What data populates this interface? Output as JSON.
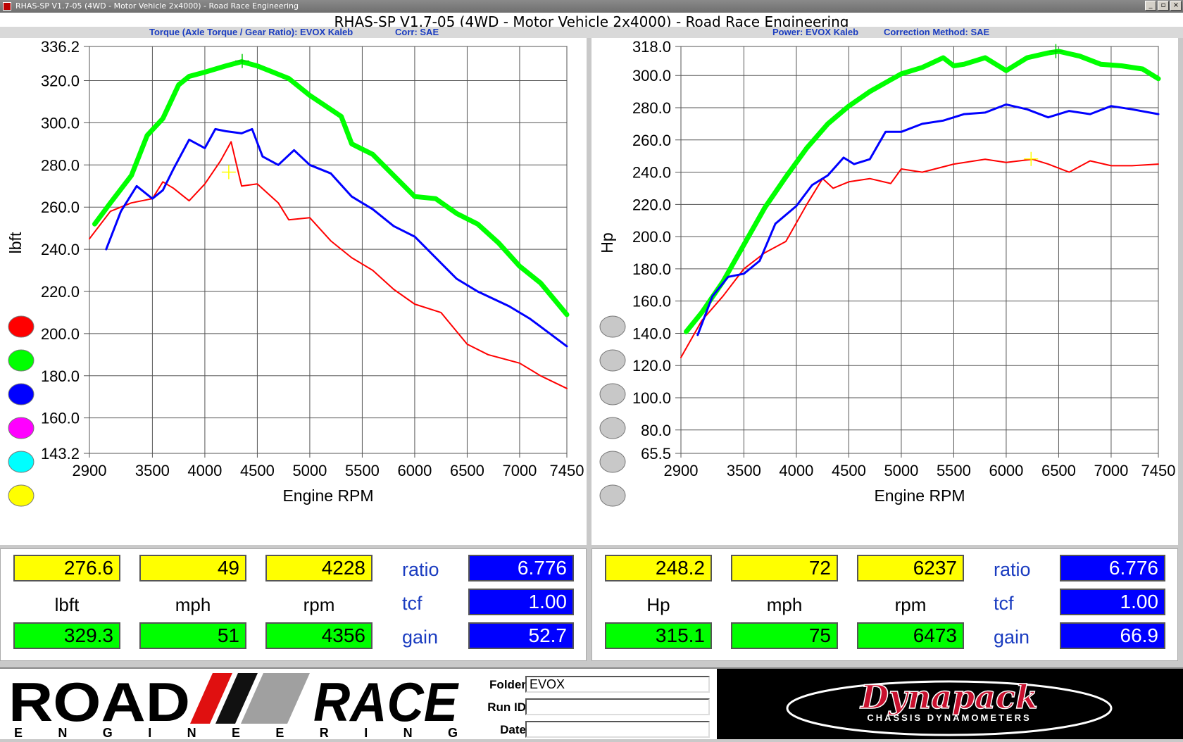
{
  "window": {
    "title": "RHAS-SP V1.7-05   (4WD - Motor Vehicle 2x4000) - Road Race Engineering",
    "controls": [
      "_",
      "×"
    ]
  },
  "header": {
    "main_title": "RHAS-SP V1.7-05   (4WD - Motor Vehicle 2x4000) - Road Race Engineering",
    "left_info": "Torque (Axle Torque / Gear Ratio): EVOX Kaleb",
    "left_corr": "Corr: SAE",
    "right_info": "Power: EVOX Kaleb",
    "right_corr": "Correction Method: SAE"
  },
  "legend_colors": [
    "#ff0000",
    "#00ff00",
    "#0000ff",
    "#ff00ff",
    "#00ffff",
    "#ffff00"
  ],
  "legend_colors_right": [
    "#c8c8c8",
    "#c8c8c8",
    "#c8c8c8",
    "#c8c8c8",
    "#c8c8c8",
    "#c8c8c8"
  ],
  "chart_data": [
    {
      "type": "line",
      "ylabel": "lbft",
      "xlabel": "Engine RPM",
      "xlim": [
        2900,
        7450
      ],
      "ylim": [
        143.2,
        336.2
      ],
      "x_ticks": [
        "2900",
        "3500",
        "4000",
        "4500",
        "5000",
        "5500",
        "6000",
        "6500",
        "7000",
        "7450"
      ],
      "y_ticks": [
        "336.2",
        "320.0",
        "300.0",
        "280.0",
        "260.0",
        "240.0",
        "220.0",
        "200.0",
        "180.0",
        "160.0",
        "143.2"
      ],
      "grid": true,
      "series": [
        {
          "color": "#ff0000",
          "width": 2,
          "x": [
            2900,
            3100,
            3300,
            3500,
            3600,
            3700,
            3850,
            4000,
            4150,
            4250,
            4350,
            4500,
            4700,
            4800,
            5000,
            5200,
            5400,
            5600,
            5800,
            6000,
            6250,
            6500,
            6700,
            7000,
            7200,
            7450
          ],
          "y": [
            245,
            258,
            262,
            264,
            272,
            269,
            263,
            271,
            282,
            291,
            270,
            271,
            262,
            254,
            255,
            244,
            236,
            230,
            221,
            214,
            210,
            195,
            190,
            186,
            180,
            174
          ]
        },
        {
          "color": "#00ff00",
          "width": 7,
          "x": [
            2950,
            3100,
            3300,
            3450,
            3600,
            3750,
            3850,
            4000,
            4200,
            4350,
            4500,
            4700,
            4800,
            5000,
            5300,
            5400,
            5600,
            5800,
            6000,
            6200,
            6400,
            6600,
            6800,
            7000,
            7200,
            7450
          ],
          "y": [
            252,
            262,
            275,
            294,
            302,
            318,
            322,
            324,
            327,
            329,
            327,
            323,
            321,
            313,
            303,
            290,
            285,
            275,
            265,
            264,
            257,
            252,
            243,
            232,
            224,
            209
          ]
        },
        {
          "color": "#0000ff",
          "width": 3,
          "x": [
            3060,
            3200,
            3350,
            3500,
            3600,
            3700,
            3850,
            4000,
            4100,
            4200,
            4350,
            4450,
            4550,
            4700,
            4850,
            5000,
            5200,
            5400,
            5600,
            5800,
            6000,
            6200,
            6400,
            6600,
            6900,
            7100,
            7450
          ],
          "y": [
            240,
            258,
            270,
            264,
            268,
            278,
            292,
            288,
            297,
            296,
            295,
            297,
            284,
            280,
            287,
            280,
            276,
            265,
            259,
            251,
            246,
            236,
            226,
            220,
            213,
            207,
            194
          ]
        }
      ],
      "markers": [
        {
          "x": 4228,
          "y": 276.6,
          "color": "#ffff00"
        },
        {
          "x": 4356,
          "y": 329.3,
          "color": "#00c800"
        }
      ]
    },
    {
      "type": "line",
      "ylabel": "Hp",
      "xlabel": "Engine RPM",
      "xlim": [
        2900,
        7450
      ],
      "ylim": [
        65.5,
        318.0
      ],
      "x_ticks": [
        "2900",
        "3500",
        "4000",
        "4500",
        "5000",
        "5500",
        "6000",
        "6500",
        "7000",
        "7450"
      ],
      "y_ticks": [
        "318.0",
        "300.0",
        "280.0",
        "260.0",
        "240.0",
        "220.0",
        "200.0",
        "180.0",
        "160.0",
        "140.0",
        "120.0",
        "100.0",
        "80.0",
        "65.5"
      ],
      "grid": true,
      "series": [
        {
          "color": "#ff0000",
          "width": 2,
          "x": [
            2900,
            3100,
            3300,
            3500,
            3700,
            3900,
            4100,
            4250,
            4350,
            4500,
            4700,
            4900,
            5000,
            5200,
            5500,
            5800,
            6000,
            6250,
            6400,
            6600,
            6800,
            7000,
            7200,
            7450
          ],
          "y": [
            125,
            148,
            163,
            180,
            190,
            197,
            220,
            236,
            230,
            234,
            236,
            233,
            242,
            240,
            245,
            248,
            246,
            248,
            245,
            240,
            247,
            244,
            244,
            245
          ]
        },
        {
          "color": "#00ff00",
          "width": 7,
          "x": [
            2950,
            3100,
            3300,
            3500,
            3700,
            3900,
            4100,
            4300,
            4500,
            4700,
            5000,
            5200,
            5400,
            5500,
            5600,
            5800,
            6000,
            6200,
            6400,
            6500,
            6700,
            6900,
            7100,
            7300,
            7450
          ],
          "y": [
            141,
            153,
            172,
            195,
            218,
            237,
            255,
            270,
            281,
            290,
            301,
            305,
            311,
            306,
            307,
            311,
            303,
            311,
            314,
            315,
            312,
            307,
            306,
            304,
            298
          ]
        },
        {
          "color": "#0000ff",
          "width": 3,
          "x": [
            3060,
            3200,
            3350,
            3500,
            3650,
            3800,
            4000,
            4150,
            4300,
            4450,
            4550,
            4700,
            4850,
            5000,
            5200,
            5400,
            5600,
            5800,
            6000,
            6200,
            6400,
            6600,
            6800,
            7000,
            7200,
            7450
          ],
          "y": [
            139,
            163,
            175,
            177,
            185,
            208,
            219,
            232,
            238,
            249,
            245,
            248,
            265,
            265,
            270,
            272,
            276,
            277,
            282,
            279,
            274,
            278,
            276,
            281,
            279,
            276
          ]
        }
      ],
      "markers": [
        {
          "x": 6237,
          "y": 248.2,
          "color": "#ffff00"
        },
        {
          "x": 6473,
          "y": 315.1,
          "color": "#00c800"
        }
      ]
    }
  ],
  "readouts": {
    "left": {
      "cursor_value": "276.6",
      "cursor_mph": "49",
      "cursor_rpm": "4228",
      "max_value": "329.3",
      "max_mph": "51",
      "max_rpm": "4356",
      "unit_value": "lbft",
      "unit_mph": "mph",
      "unit_rpm": "rpm",
      "ratio_label": "ratio",
      "ratio": "6.776",
      "tcf_label": "tcf",
      "tcf": "1.00",
      "gain_label": "gain",
      "gain": "52.7"
    },
    "right": {
      "cursor_value": "248.2",
      "cursor_mph": "72",
      "cursor_rpm": "6237",
      "max_value": "315.1",
      "max_mph": "75",
      "max_rpm": "6473",
      "unit_value": "Hp",
      "unit_mph": "mph",
      "unit_rpm": "rpm",
      "ratio_label": "ratio",
      "ratio": "6.776",
      "tcf_label": "tcf",
      "tcf": "1.00",
      "gain_label": "gain",
      "gain": "66.9"
    }
  },
  "footer": {
    "logo_road": "ROAD",
    "logo_race": "RACE",
    "logo_sub": "E N G I N E E R I N G",
    "folder_label": "Folder",
    "folder_value": "EVOX",
    "runid_label": "Run ID",
    "runid_value": "",
    "date_label": "Date",
    "date_value": "",
    "dynapack_logo": "Dynapack",
    "dynapack_sub": "CHASSIS DYNAMOMETERS"
  }
}
